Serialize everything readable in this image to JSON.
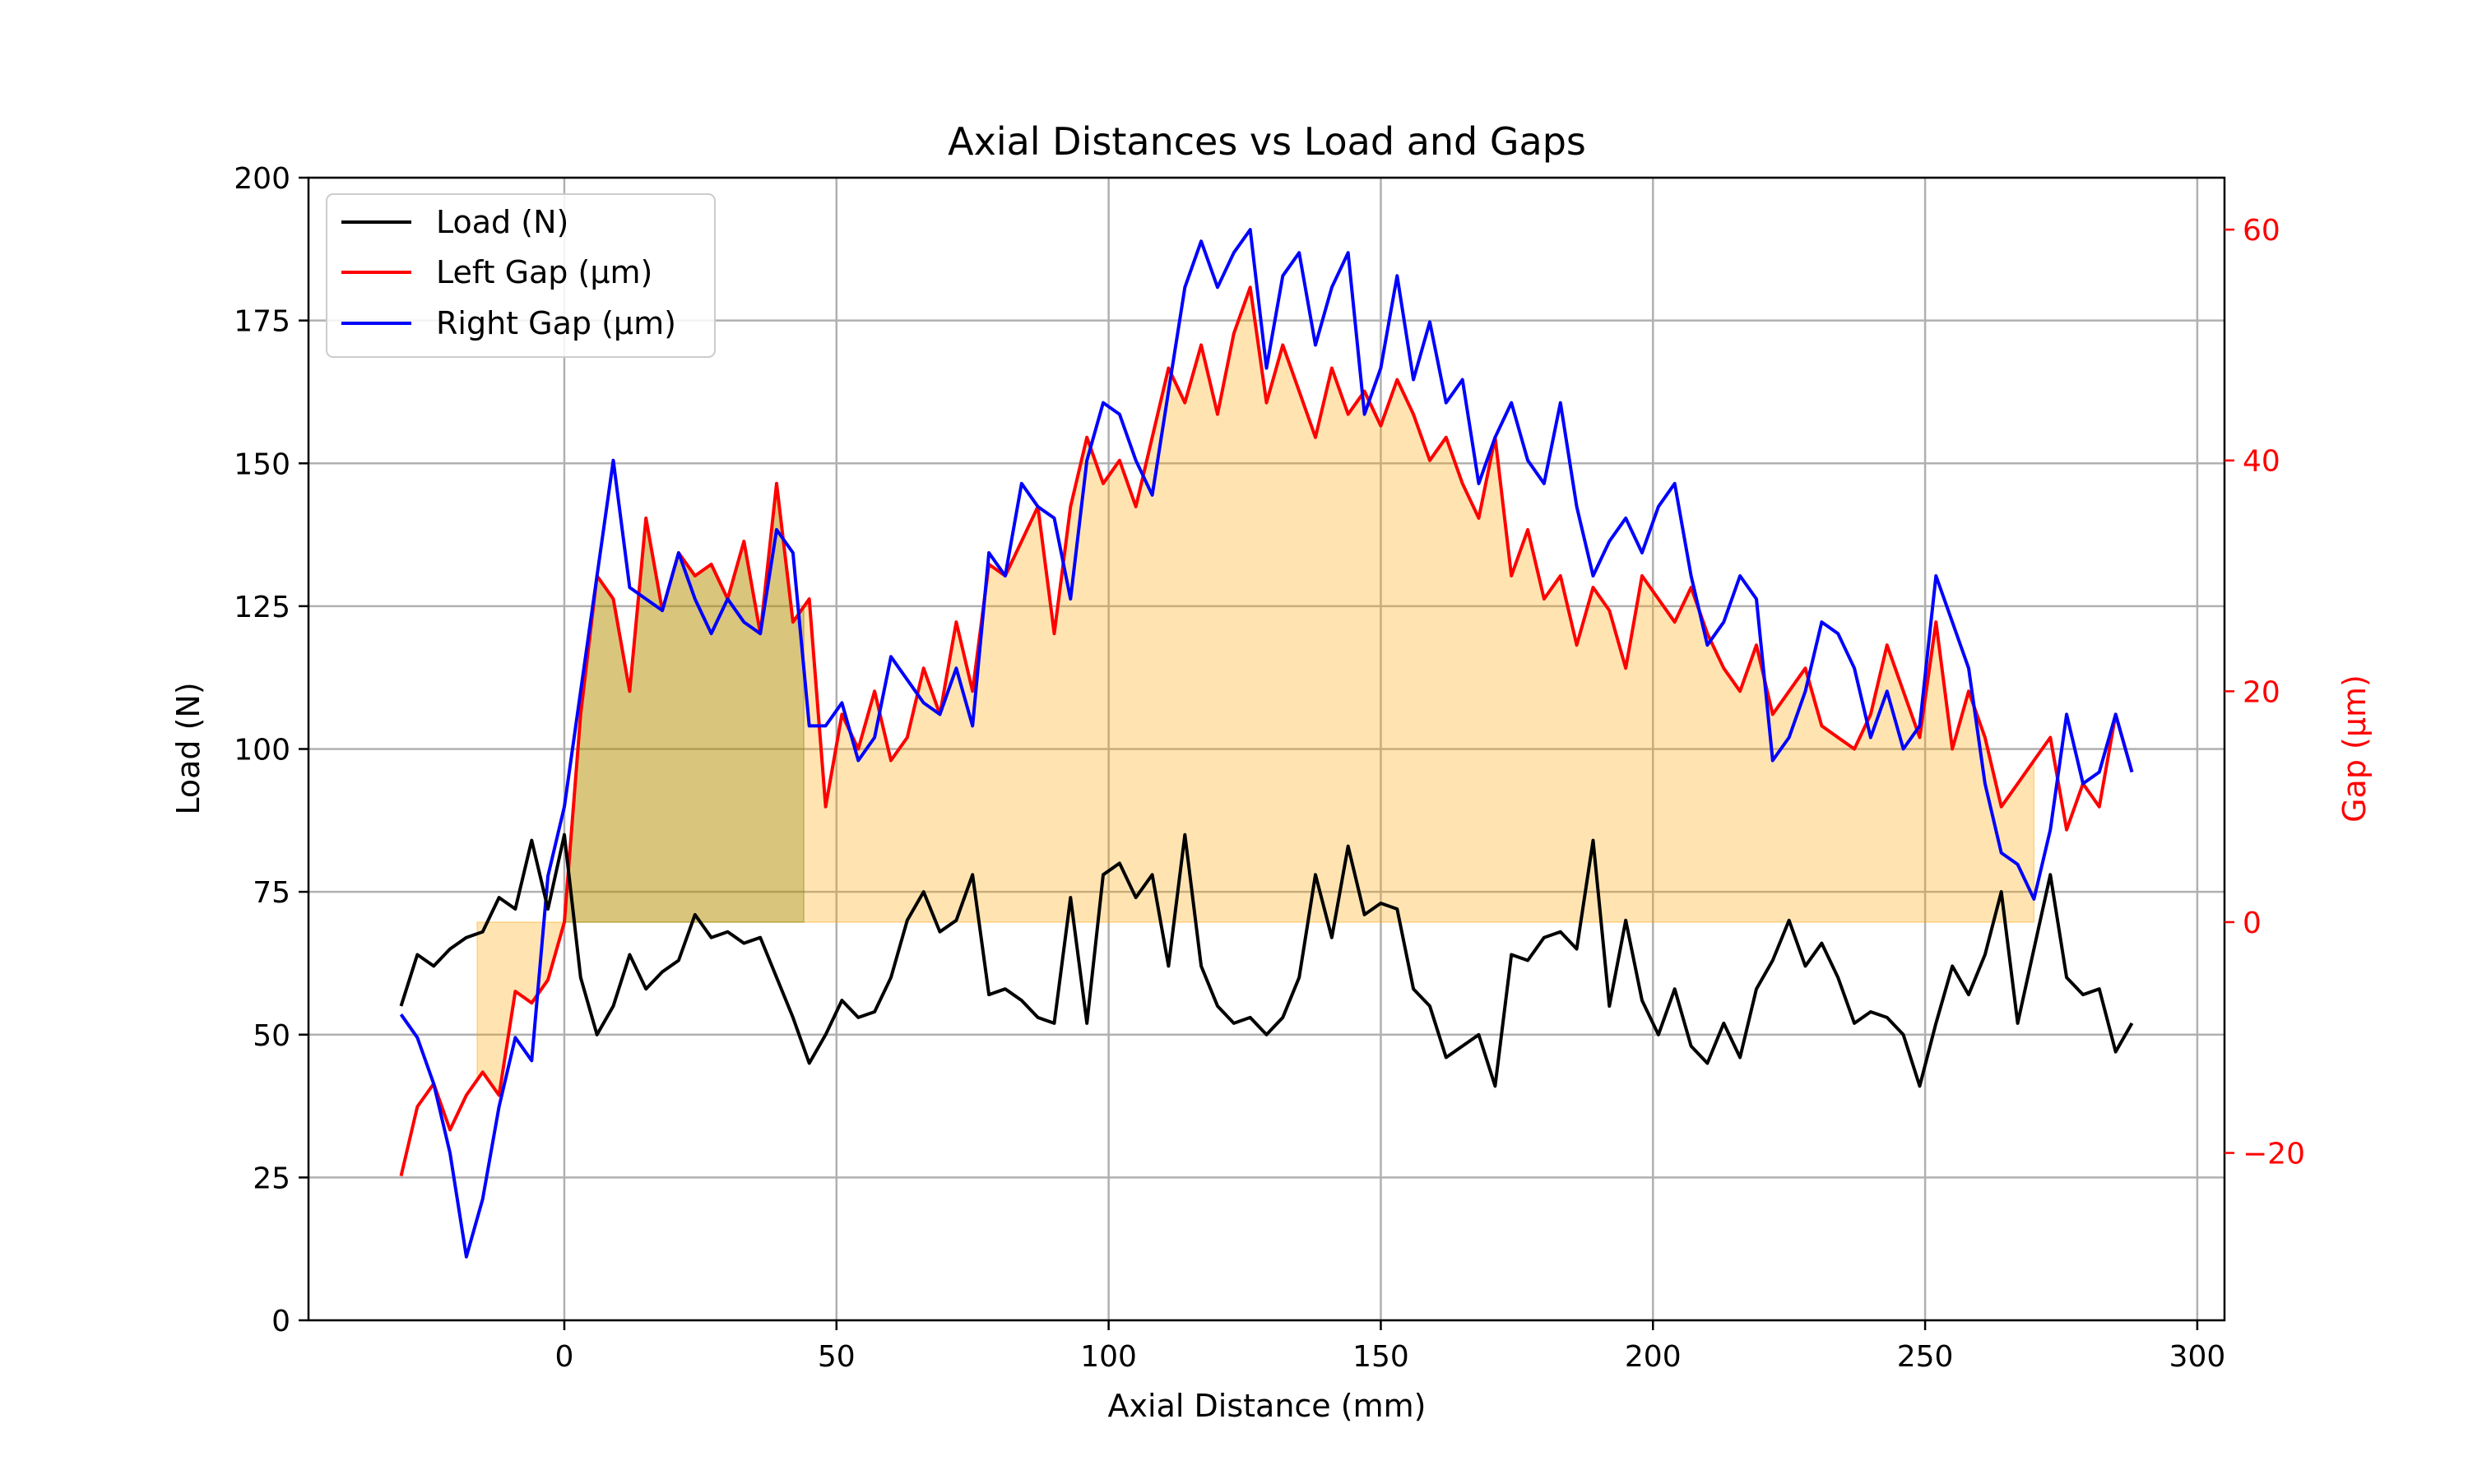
{
  "chart_data": {
    "type": "line",
    "title": "Axial Distances vs Load and Gaps",
    "xlabel": "Axial Distance (mm)",
    "ylabel": "Load (N)",
    "y2label": "Gap (μm)",
    "xlim": [
      -47,
      305
    ],
    "ylim": [
      0,
      200
    ],
    "y2lim": [
      -34.5,
      64.5
    ],
    "xticks": [
      "0",
      "50",
      "100",
      "150",
      "200",
      "250",
      "300"
    ],
    "yticks": [
      "0",
      "25",
      "50",
      "75",
      "100",
      "125",
      "150",
      "175",
      "200"
    ],
    "y2ticks": [
      "−20",
      "0",
      "20",
      "40",
      "60"
    ],
    "grid": true,
    "legend_position": "top-left",
    "colors": {
      "load": "#000000",
      "left_gap": "#ff0000",
      "right_gap": "#0000ff",
      "fill": "#ffa500",
      "fill_overlap": "#808000"
    },
    "fill_regions": [
      {
        "x": [
          -16,
          270
        ],
        "y2": [
          0,
          "left_gap"
        ],
        "color": "orange",
        "alpha": 0.3
      },
      {
        "x": [
          0,
          44
        ],
        "y2": [
          0,
          "left_gap"
        ],
        "color": "olive",
        "alpha": 0.3
      }
    ],
    "series": [
      {
        "name": "Load (N)",
        "axis": "left",
        "x": [
          -30,
          -27,
          -24,
          -21,
          -18,
          -15,
          -12,
          -9,
          -6,
          -3,
          0,
          3,
          6,
          9,
          12,
          15,
          18,
          21,
          24,
          27,
          30,
          33,
          36,
          39,
          42,
          45,
          48,
          51,
          54,
          57,
          60,
          63,
          66,
          69,
          72,
          75,
          78,
          81,
          84,
          87,
          90,
          93,
          96,
          99,
          102,
          105,
          108,
          111,
          114,
          117,
          120,
          123,
          126,
          129,
          132,
          135,
          138,
          141,
          144,
          147,
          150,
          153,
          156,
          159,
          162,
          165,
          168,
          171,
          174,
          177,
          180,
          183,
          186,
          189,
          192,
          195,
          198,
          201,
          204,
          207,
          210,
          213,
          216,
          219,
          222,
          225,
          228,
          231,
          234,
          237,
          240,
          243,
          246,
          249,
          252,
          255,
          258,
          261,
          264,
          267,
          270,
          273,
          276,
          279,
          282,
          285,
          288
        ],
        "values": [
          55,
          64,
          62,
          65,
          67,
          68,
          74,
          72,
          84,
          72,
          85,
          60,
          50,
          55,
          64,
          58,
          61,
          63,
          71,
          67,
          68,
          66,
          67,
          60,
          53,
          45,
          50,
          56,
          53,
          54,
          60,
          70,
          75,
          68,
          70,
          78,
          57,
          58,
          56,
          53,
          52,
          74,
          52,
          78,
          80,
          74,
          78,
          62,
          85,
          62,
          55,
          52,
          53,
          50,
          53,
          60,
          78,
          67,
          83,
          71,
          73,
          72,
          58,
          55,
          46,
          48,
          50,
          41,
          64,
          63,
          67,
          68,
          65,
          84,
          55,
          70,
          56,
          50,
          58,
          48,
          45,
          52,
          46,
          58,
          63,
          70,
          62,
          66,
          60,
          52,
          54,
          53,
          50,
          41,
          52,
          62,
          57,
          64,
          75,
          52,
          65,
          78,
          60,
          57,
          58,
          47,
          52
        ]
      },
      {
        "name": "Left Gap (μm)",
        "axis": "right",
        "x": [
          -30,
          -27,
          -24,
          -21,
          -18,
          -15,
          -12,
          -9,
          -6,
          -3,
          0,
          3,
          6,
          9,
          12,
          15,
          18,
          21,
          24,
          27,
          30,
          33,
          36,
          39,
          42,
          45,
          48,
          51,
          54,
          57,
          60,
          63,
          66,
          69,
          72,
          75,
          78,
          81,
          84,
          87,
          90,
          93,
          96,
          99,
          102,
          105,
          108,
          111,
          114,
          117,
          120,
          123,
          126,
          129,
          132,
          135,
          138,
          141,
          144,
          147,
          150,
          153,
          156,
          159,
          162,
          165,
          168,
          171,
          174,
          177,
          180,
          183,
          186,
          189,
          192,
          195,
          198,
          201,
          204,
          207,
          210,
          213,
          216,
          219,
          222,
          225,
          228,
          231,
          234,
          237,
          240,
          243,
          246,
          249,
          252,
          255,
          258,
          261,
          264,
          267,
          270,
          273,
          276,
          279,
          282,
          285,
          288
        ],
        "values": [
          -22,
          -16,
          -14,
          -18,
          -15,
          -13,
          -15,
          -6,
          -7,
          -5,
          0,
          18,
          30,
          28,
          20,
          35,
          27,
          32,
          30,
          31,
          28,
          33,
          25,
          38,
          26,
          28,
          10,
          18,
          15,
          20,
          14,
          16,
          22,
          18,
          26,
          20,
          31,
          30,
          33,
          36,
          25,
          36,
          42,
          38,
          40,
          36,
          42,
          48,
          45,
          50,
          44,
          51,
          55,
          45,
          50,
          46,
          42,
          48,
          44,
          46,
          43,
          47,
          44,
          40,
          42,
          38,
          35,
          42,
          30,
          34,
          28,
          30,
          24,
          29,
          27,
          22,
          30,
          28,
          26,
          29,
          25,
          22,
          20,
          24,
          18,
          20,
          22,
          17,
          16,
          15,
          18,
          24,
          20,
          16,
          26,
          15,
          20,
          16,
          10,
          12,
          14,
          16,
          8,
          12,
          10,
          18,
          13
        ]
      },
      {
        "name": "Right Gap (μm)",
        "axis": "right",
        "x": [
          -30,
          -27,
          -24,
          -21,
          -18,
          -15,
          -12,
          -9,
          -6,
          -3,
          0,
          3,
          6,
          9,
          12,
          15,
          18,
          21,
          24,
          27,
          30,
          33,
          36,
          39,
          42,
          45,
          48,
          51,
          54,
          57,
          60,
          63,
          66,
          69,
          72,
          75,
          78,
          81,
          84,
          87,
          90,
          93,
          96,
          99,
          102,
          105,
          108,
          111,
          114,
          117,
          120,
          123,
          126,
          129,
          132,
          135,
          138,
          141,
          144,
          147,
          150,
          153,
          156,
          159,
          162,
          165,
          168,
          171,
          174,
          177,
          180,
          183,
          186,
          189,
          192,
          195,
          198,
          201,
          204,
          207,
          210,
          213,
          216,
          219,
          222,
          225,
          228,
          231,
          234,
          237,
          240,
          243,
          246,
          249,
          252,
          255,
          258,
          261,
          264,
          267,
          270,
          273,
          276,
          279,
          282,
          285,
          288
        ],
        "values": [
          -8,
          -10,
          -14,
          -20,
          -29,
          -24,
          -16,
          -10,
          -12,
          4,
          10,
          20,
          30,
          40,
          29,
          28,
          27,
          32,
          28,
          25,
          28,
          26,
          25,
          34,
          32,
          17,
          17,
          19,
          14,
          16,
          23,
          21,
          19,
          18,
          22,
          17,
          32,
          30,
          38,
          36,
          35,
          28,
          40,
          45,
          44,
          40,
          37,
          46,
          55,
          59,
          55,
          58,
          60,
          48,
          56,
          58,
          50,
          55,
          58,
          44,
          48,
          56,
          47,
          52,
          45,
          47,
          38,
          42,
          45,
          40,
          38,
          45,
          36,
          30,
          33,
          35,
          32,
          36,
          38,
          30,
          24,
          26,
          30,
          28,
          14,
          16,
          20,
          26,
          25,
          22,
          16,
          20,
          15,
          17,
          30,
          26,
          22,
          12,
          6,
          5,
          2,
          8,
          18,
          12,
          13,
          18,
          13
        ]
      }
    ]
  }
}
